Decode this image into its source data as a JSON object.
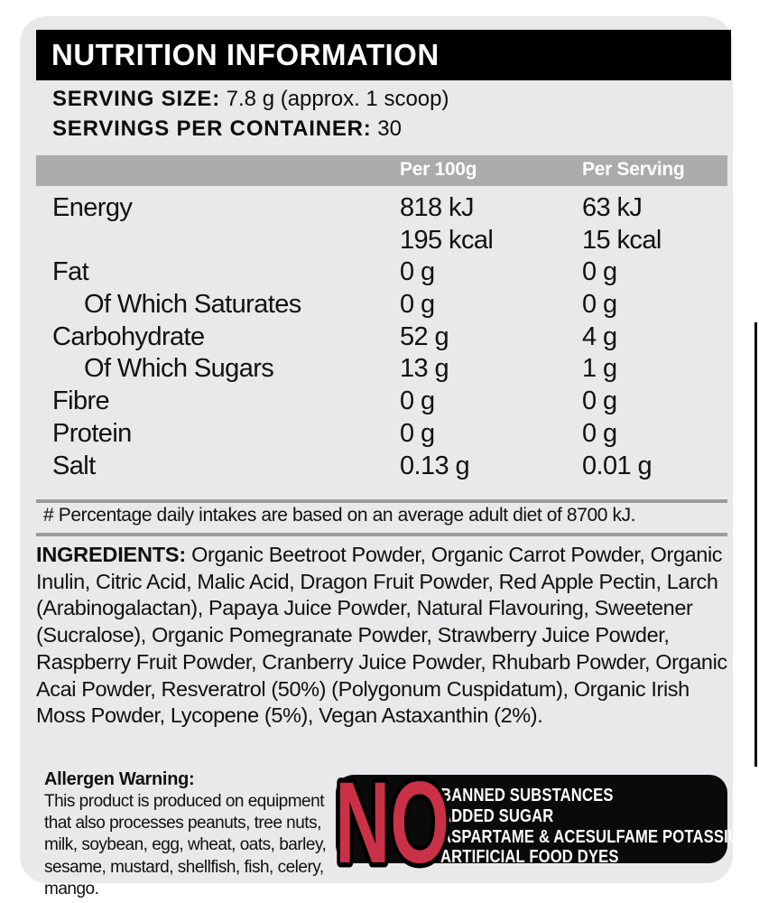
{
  "title": "NUTRITION INFORMATION",
  "serving": {
    "size_label": "SERVING SIZE:",
    "size_value": " 7.8 g (approx. 1 scoop)",
    "container_label": "SERVINGS PER CONTAINER:",
    "container_value": " 30"
  },
  "table": {
    "columns": [
      "Per 100g",
      "Per Serving"
    ],
    "rows": [
      {
        "label": "Energy",
        "indent": false,
        "per100": "818 kJ",
        "serving": "63 kJ"
      },
      {
        "label": "",
        "indent": false,
        "per100": "195 kcal",
        "serving": "15 kcal"
      },
      {
        "label": "Fat",
        "indent": false,
        "per100": "0 g",
        "serving": "0 g"
      },
      {
        "label": "Of Which Saturates",
        "indent": true,
        "per100": "0 g",
        "serving": "0 g"
      },
      {
        "label": "Carbohydrate",
        "indent": false,
        "per100": "52 g",
        "serving": "4 g"
      },
      {
        "label": "Of Which Sugars",
        "indent": true,
        "per100": "13 g",
        "serving": "1 g"
      },
      {
        "label": "Fibre",
        "indent": false,
        "per100": "0 g",
        "serving": "0 g"
      },
      {
        "label": "Protein",
        "indent": false,
        "per100": "0 g",
        "serving": "0 g"
      },
      {
        "label": "Salt",
        "indent": false,
        "per100": "0.13 g",
        "serving": "0.01 g"
      }
    ]
  },
  "footnote": "# Percentage daily intakes are based on an average adult diet of 8700 kJ.",
  "ingredients": {
    "label": "INGREDIENTS:",
    "text": " Organic Beetroot Powder, Organic Carrot Powder, Organic Inulin, Citric Acid, Malic Acid, Dragon Fruit Powder, Red Apple Pectin, Larch (Arabinogalactan), Papaya Juice Powder, Natural Flavouring, Sweetener (Sucralose), Organic Pomegranate Powder, Strawberry Juice Powder, Raspberry Fruit Powder, Cranberry Juice Powder, Rhubarb Powder, Organic Acai Powder, Resveratrol (50%) (Polygonum Cuspidatum), Organic Irish Moss Powder, Lycopene (5%), Vegan Astaxanthin (2%)."
  },
  "allergen": {
    "title": "Allergen Warning:",
    "text": "This product is produced on equipment that also processes peanuts, tree nuts, milk, soybean, egg, wheat, oats, barley, sesame, mustard, shellfish, fish, celery, mango."
  },
  "no_box": {
    "word": "NO",
    "items": [
      "BANNED SUBSTANCES",
      "ADDED SUGAR",
      "ASPARTAME & ACESULFAME POTASSIUM",
      "ARTIFICIAL FOOD DYES"
    ]
  },
  "colors": {
    "panel_gray": "#e9e9eb",
    "header_gray": "#ababad",
    "rule_gray": "#9b9b9d",
    "black": "#0a0a0a",
    "accent_red": "#cb3146",
    "white": "#ffffff"
  }
}
